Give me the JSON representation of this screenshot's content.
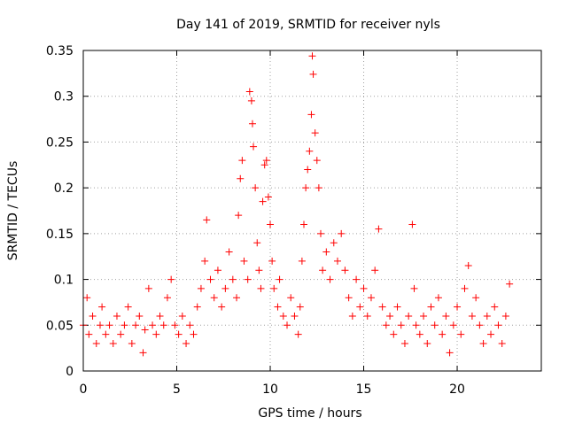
{
  "chart_data": {
    "type": "scatter",
    "title": "Day 141 of 2019, SRMTID for receiver nyls",
    "xlabel": "GPS time / hours",
    "ylabel": "SRMTID / TECUs",
    "xlim": [
      0,
      24.5
    ],
    "ylim": [
      0,
      0.35
    ],
    "grid": true,
    "marker": "+",
    "xticks": [
      0,
      5,
      10,
      15,
      20
    ],
    "xtick_labels": [
      "0",
      "5",
      "10",
      "15",
      "20"
    ],
    "yticks": [
      0,
      0.05,
      0.1,
      0.15,
      0.2,
      0.25,
      0.3,
      0.35
    ],
    "ytick_labels": [
      "0",
      "0.05",
      "0.1",
      "0.15",
      "0.2",
      "0.25",
      "0.3",
      "0.35"
    ],
    "series": [
      {
        "name": "SRMTID",
        "color": "#ff0000",
        "points": [
          [
            0.0,
            0.05
          ],
          [
            0.2,
            0.08
          ],
          [
            0.3,
            0.04
          ],
          [
            0.5,
            0.06
          ],
          [
            0.7,
            0.03
          ],
          [
            0.9,
            0.05
          ],
          [
            1.0,
            0.07
          ],
          [
            1.2,
            0.04
          ],
          [
            1.4,
            0.05
          ],
          [
            1.6,
            0.03
          ],
          [
            1.8,
            0.06
          ],
          [
            2.0,
            0.04
          ],
          [
            2.2,
            0.05
          ],
          [
            2.4,
            0.07
          ],
          [
            2.6,
            0.03
          ],
          [
            2.8,
            0.05
          ],
          [
            3.0,
            0.06
          ],
          [
            3.2,
            0.02
          ],
          [
            3.3,
            0.045
          ],
          [
            3.5,
            0.09
          ],
          [
            3.7,
            0.05
          ],
          [
            3.9,
            0.04
          ],
          [
            4.1,
            0.06
          ],
          [
            4.3,
            0.05
          ],
          [
            4.5,
            0.08
          ],
          [
            4.7,
            0.1
          ],
          [
            4.9,
            0.05
          ],
          [
            5.1,
            0.04
          ],
          [
            5.3,
            0.06
          ],
          [
            5.5,
            0.03
          ],
          [
            5.7,
            0.05
          ],
          [
            5.9,
            0.04
          ],
          [
            6.1,
            0.07
          ],
          [
            6.3,
            0.09
          ],
          [
            6.5,
            0.12
          ],
          [
            6.6,
            0.165
          ],
          [
            6.8,
            0.1
          ],
          [
            7.0,
            0.08
          ],
          [
            7.2,
            0.11
          ],
          [
            7.4,
            0.07
          ],
          [
            7.6,
            0.09
          ],
          [
            7.8,
            0.13
          ],
          [
            8.0,
            0.1
          ],
          [
            8.2,
            0.08
          ],
          [
            8.3,
            0.17
          ],
          [
            8.4,
            0.21
          ],
          [
            8.5,
            0.23
          ],
          [
            8.6,
            0.12
          ],
          [
            8.8,
            0.1
          ],
          [
            8.9,
            0.305
          ],
          [
            9.0,
            0.295
          ],
          [
            9.05,
            0.27
          ],
          [
            9.1,
            0.245
          ],
          [
            9.2,
            0.2
          ],
          [
            9.3,
            0.14
          ],
          [
            9.4,
            0.11
          ],
          [
            9.5,
            0.09
          ],
          [
            9.6,
            0.185
          ],
          [
            9.7,
            0.225
          ],
          [
            9.8,
            0.23
          ],
          [
            9.9,
            0.19
          ],
          [
            10.0,
            0.16
          ],
          [
            10.1,
            0.12
          ],
          [
            10.2,
            0.09
          ],
          [
            10.4,
            0.07
          ],
          [
            10.5,
            0.1
          ],
          [
            10.7,
            0.06
          ],
          [
            10.9,
            0.05
          ],
          [
            11.1,
            0.08
          ],
          [
            11.3,
            0.06
          ],
          [
            11.5,
            0.04
          ],
          [
            11.6,
            0.07
          ],
          [
            11.7,
            0.12
          ],
          [
            11.8,
            0.16
          ],
          [
            11.9,
            0.2
          ],
          [
            12.0,
            0.22
          ],
          [
            12.1,
            0.24
          ],
          [
            12.2,
            0.28
          ],
          [
            12.25,
            0.344
          ],
          [
            12.3,
            0.324
          ],
          [
            12.4,
            0.26
          ],
          [
            12.5,
            0.23
          ],
          [
            12.6,
            0.2
          ],
          [
            12.7,
            0.15
          ],
          [
            12.8,
            0.11
          ],
          [
            13.0,
            0.13
          ],
          [
            13.2,
            0.1
          ],
          [
            13.4,
            0.14
          ],
          [
            13.6,
            0.12
          ],
          [
            13.8,
            0.15
          ],
          [
            14.0,
            0.11
          ],
          [
            14.2,
            0.08
          ],
          [
            14.4,
            0.06
          ],
          [
            14.6,
            0.1
          ],
          [
            14.8,
            0.07
          ],
          [
            15.0,
            0.09
          ],
          [
            15.2,
            0.06
          ],
          [
            15.4,
            0.08
          ],
          [
            15.6,
            0.11
          ],
          [
            15.8,
            0.155
          ],
          [
            16.0,
            0.07
          ],
          [
            16.2,
            0.05
          ],
          [
            16.4,
            0.06
          ],
          [
            16.6,
            0.04
          ],
          [
            16.8,
            0.07
          ],
          [
            17.0,
            0.05
          ],
          [
            17.2,
            0.03
          ],
          [
            17.4,
            0.06
          ],
          [
            17.6,
            0.16
          ],
          [
            17.7,
            0.09
          ],
          [
            17.8,
            0.05
          ],
          [
            18.0,
            0.04
          ],
          [
            18.2,
            0.06
          ],
          [
            18.4,
            0.03
          ],
          [
            18.6,
            0.07
          ],
          [
            18.8,
            0.05
          ],
          [
            19.0,
            0.08
          ],
          [
            19.2,
            0.04
          ],
          [
            19.4,
            0.06
          ],
          [
            19.6,
            0.02
          ],
          [
            19.8,
            0.05
          ],
          [
            20.0,
            0.07
          ],
          [
            20.2,
            0.04
          ],
          [
            20.4,
            0.09
          ],
          [
            20.6,
            0.115
          ],
          [
            20.8,
            0.06
          ],
          [
            21.0,
            0.08
          ],
          [
            21.2,
            0.05
          ],
          [
            21.4,
            0.03
          ],
          [
            21.6,
            0.06
          ],
          [
            21.8,
            0.04
          ],
          [
            22.0,
            0.07
          ],
          [
            22.2,
            0.05
          ],
          [
            22.4,
            0.03
          ],
          [
            22.6,
            0.06
          ],
          [
            22.8,
            0.095
          ]
        ]
      }
    ]
  }
}
